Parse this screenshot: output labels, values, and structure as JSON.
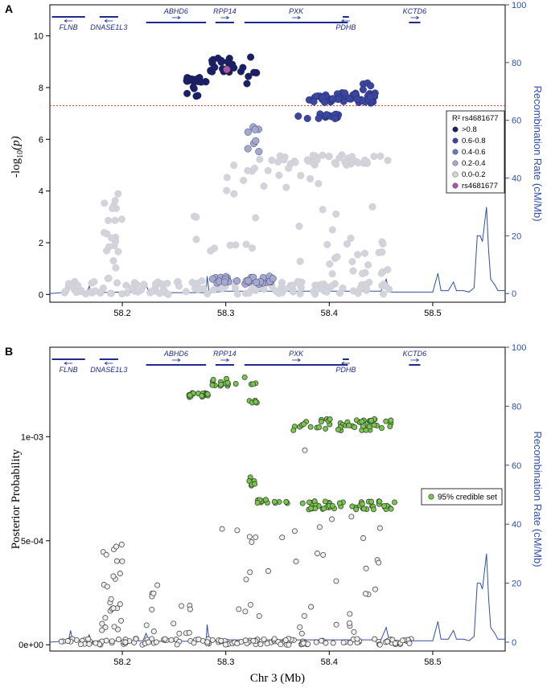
{
  "colors": {
    "ld_r2_above_0_8": "#1a1f66",
    "ld_r2_0_6_0_8": "#3b46a0",
    "ld_r2_0_4_0_6": "#6f76b8",
    "ld_r2_0_2_0_4": "#a6a9cf",
    "ld_r2_0_0_0_2": "#d3d3dc",
    "lead_snp": "#a855a5",
    "credible_set": "#77c84a",
    "other_snp_fill": "#eeeeee",
    "recombination_line": "#2f4fa8",
    "threshold_line": "#e23b3b",
    "gene_track": "#1f2a8c"
  },
  "chart_data": [
    {
      "panel_label": "A",
      "type": "scatter",
      "title": "",
      "xlabel": "",
      "ylabel": "-log10(p)",
      "ylabel_main": "-log",
      "ylabel_sub": "10",
      "ylabel_tail": "(p)",
      "y2label": "Recombination Rate (cM/Mb)",
      "xlim": [
        58.13,
        58.57
      ],
      "ylim": [
        -0.3,
        11.2
      ],
      "y2lim": [
        -3,
        100
      ],
      "yticks": [
        "0",
        "2",
        "4",
        "6",
        "8",
        "10"
      ],
      "y2ticks": [
        "0",
        "20",
        "40",
        "60",
        "80",
        "100"
      ],
      "xticks": [
        "58.2",
        "58.3",
        "58.4",
        "58.5"
      ],
      "threshold": 7.3,
      "genes": [
        {
          "name": "FLNB",
          "start": 58.132,
          "end": 58.164,
          "strand": "-",
          "row": "lower"
        },
        {
          "name": "DNASE1L3",
          "start": 58.178,
          "end": 58.196,
          "strand": "-",
          "row": "lower"
        },
        {
          "name": "ABHD6",
          "start": 58.223,
          "end": 58.281,
          "strand": "+",
          "row": "upper"
        },
        {
          "name": "RPP14",
          "start": 58.29,
          "end": 58.308,
          "strand": "+",
          "row": "upper"
        },
        {
          "name": "PXK",
          "start": 58.318,
          "end": 58.418,
          "strand": "+",
          "row": "upper"
        },
        {
          "name": "PDHB",
          "start": 58.413,
          "end": 58.419,
          "strand": "-",
          "row": "lower"
        },
        {
          "name": "KCTD6",
          "start": 58.477,
          "end": 58.488,
          "strand": "+",
          "row": "upper"
        }
      ],
      "legend_title": "R² rs4681677",
      "legend": [
        {
          "label": ">0.8",
          "color": "#1a1f66"
        },
        {
          "label": "0.6-0.8",
          "color": "#3b46a0"
        },
        {
          "label": "0.4-0.6",
          "color": "#6f76b8"
        },
        {
          "label": "0.2-0.4",
          "color": "#a6a9cf"
        },
        {
          "label": "0.0-0.2",
          "color": "#d3d3dc"
        },
        {
          "label": "rs4681677",
          "color": "#a855a5"
        }
      ],
      "lead_snp": {
        "name": "rs4681677",
        "x": 58.301,
        "y": 8.7
      },
      "clusters": [
        {
          "ld": "r08",
          "x_range": [
            58.262,
            58.283
          ],
          "y_range": [
            8.2,
            8.4
          ],
          "n": 22
        },
        {
          "ld": "r08",
          "x_range": [
            58.262,
            58.275
          ],
          "y_range": [
            7.6,
            8.1
          ],
          "n": 5
        },
        {
          "ld": "r08",
          "x_range": [
            58.285,
            58.31
          ],
          "y_range": [
            8.6,
            9.2
          ],
          "n": 20
        },
        {
          "ld": "r08",
          "x_range": [
            58.312,
            58.33
          ],
          "y_range": [
            8.1,
            9.3
          ],
          "n": 8
        },
        {
          "ld": "r06",
          "x_range": [
            58.38,
            58.445
          ],
          "y_range": [
            7.4,
            7.8
          ],
          "n": 50
        },
        {
          "ld": "r06",
          "x_range": [
            58.37,
            58.41
          ],
          "y_range": [
            6.8,
            7.0
          ],
          "n": 14
        },
        {
          "ld": "r06",
          "x_range": [
            58.43,
            58.455
          ],
          "y_range": [
            7.5,
            8.3
          ],
          "n": 6
        },
        {
          "ld": "r02",
          "x_range": [
            58.32,
            58.34
          ],
          "y_range": [
            5.5,
            6.5
          ],
          "n": 8
        },
        {
          "ld": "r02",
          "x_range": [
            58.28,
            58.35
          ],
          "y_range": [
            0.4,
            0.7
          ],
          "n": 30
        },
        {
          "ld": "r00",
          "x_range": [
            58.33,
            58.46
          ],
          "y_range": [
            5.0,
            5.4
          ],
          "n": 42
        },
        {
          "ld": "r00",
          "x_range": [
            58.3,
            58.39
          ],
          "y_range": [
            3.5,
            5.1
          ],
          "n": 16
        },
        {
          "ld": "r00",
          "x_range": [
            58.18,
            58.2
          ],
          "y_range": [
            0.6,
            3.9
          ],
          "n": 22
        },
        {
          "ld": "r00",
          "x_range": [
            58.14,
            58.46
          ],
          "y_range": [
            0.0,
            0.5
          ],
          "n": 130
        },
        {
          "ld": "r00",
          "x_range": [
            58.24,
            58.46
          ],
          "y_range": [
            0.5,
            3.5
          ],
          "n": 30
        },
        {
          "ld": "r00",
          "x_range": [
            58.4,
            58.46
          ],
          "y_range": [
            0.8,
            1.8
          ],
          "n": 10
        }
      ],
      "recombination": [
        [
          58.13,
          0
        ],
        [
          58.148,
          0.5
        ],
        [
          58.15,
          4
        ],
        [
          58.152,
          0.5
        ],
        [
          58.166,
          0.5
        ],
        [
          58.168,
          2.5
        ],
        [
          58.17,
          0.3
        ],
        [
          58.2,
          0.5
        ],
        [
          58.22,
          0.5
        ],
        [
          58.223,
          3
        ],
        [
          58.226,
          0.3
        ],
        [
          58.245,
          0.3
        ],
        [
          58.281,
          0.3
        ],
        [
          58.282,
          6
        ],
        [
          58.284,
          0.3
        ],
        [
          58.3,
          0.8
        ],
        [
          58.33,
          0.8
        ],
        [
          58.45,
          0.8
        ],
        [
          58.455,
          5
        ],
        [
          58.458,
          0.5
        ],
        [
          58.5,
          0.5
        ],
        [
          58.505,
          7
        ],
        [
          58.508,
          1
        ],
        [
          58.515,
          1
        ],
        [
          58.52,
          4
        ],
        [
          58.523,
          1
        ],
        [
          58.53,
          1
        ],
        [
          58.535,
          0.5
        ],
        [
          58.54,
          2
        ],
        [
          58.543,
          20
        ],
        [
          58.546,
          20
        ],
        [
          58.548,
          18
        ],
        [
          58.552,
          30
        ],
        [
          58.554,
          15
        ],
        [
          58.556,
          5
        ],
        [
          58.56,
          3
        ],
        [
          58.563,
          1
        ],
        [
          58.57,
          1
        ]
      ]
    },
    {
      "panel_label": "B",
      "type": "scatter",
      "title": "",
      "xlabel": "Chr 3 (Mb)",
      "ylabel": "Posterior Probability",
      "y2label": "Recombination Rate (cM/Mb)",
      "xlim": [
        58.13,
        58.57
      ],
      "ylim": [
        -3e-05,
        0.00143
      ],
      "y2lim": [
        -3,
        100
      ],
      "yticks": [
        "0e+00",
        "5e-04",
        "1e-03"
      ],
      "y2ticks": [
        "0",
        "20",
        "40",
        "60",
        "80",
        "100"
      ],
      "xticks": [
        "58.2",
        "58.3",
        "58.4",
        "58.5"
      ],
      "genes": [
        {
          "name": "FLNB",
          "start": 58.132,
          "end": 58.164,
          "strand": "-",
          "row": "lower"
        },
        {
          "name": "DNASE1L3",
          "start": 58.178,
          "end": 58.196,
          "strand": "-",
          "row": "lower"
        },
        {
          "name": "ABHD6",
          "start": 58.223,
          "end": 58.281,
          "strand": "+",
          "row": "upper"
        },
        {
          "name": "RPP14",
          "start": 58.29,
          "end": 58.308,
          "strand": "+",
          "row": "upper"
        },
        {
          "name": "PXK",
          "start": 58.318,
          "end": 58.418,
          "strand": "+",
          "row": "upper"
        },
        {
          "name": "PDHB",
          "start": 58.413,
          "end": 58.419,
          "strand": "-",
          "row": "lower"
        },
        {
          "name": "KCTD6",
          "start": 58.477,
          "end": 58.488,
          "strand": "+",
          "row": "upper"
        }
      ],
      "legend": [
        {
          "label": "95% credible set",
          "color": "#77c84a"
        }
      ],
      "clusters": [
        {
          "set": "credible",
          "x_range": [
            58.262,
            58.283
          ],
          "y_range": [
            0.00119,
            0.00121
          ],
          "n": 18
        },
        {
          "set": "credible",
          "x_range": [
            58.285,
            58.31
          ],
          "y_range": [
            0.00124,
            0.00128
          ],
          "n": 14
        },
        {
          "set": "credible",
          "x_range": [
            58.31,
            58.33
          ],
          "y_range": [
            0.00125,
            0.00129
          ],
          "n": 4
        },
        {
          "set": "credible",
          "x_range": [
            58.322,
            58.33
          ],
          "y_range": [
            0.00116,
            0.00118
          ],
          "n": 6
        },
        {
          "set": "credible",
          "x_range": [
            58.365,
            58.46
          ],
          "y_range": [
            0.00103,
            0.00109
          ],
          "n": 55
        },
        {
          "set": "credible",
          "x_range": [
            58.32,
            58.33
          ],
          "y_range": [
            0.00075,
            0.00081
          ],
          "n": 6
        },
        {
          "set": "credible",
          "x_range": [
            58.325,
            58.36
          ],
          "y_range": [
            0.00068,
            0.0007
          ],
          "n": 14
        },
        {
          "set": "credible",
          "x_range": [
            58.37,
            58.465
          ],
          "y_range": [
            0.00065,
            0.00069
          ],
          "n": 50
        },
        {
          "set": "other",
          "x_range": [
            58.375,
            58.38
          ],
          "y_range": [
            0.00092,
            0.00094
          ],
          "n": 1
        },
        {
          "set": "other",
          "x_range": [
            58.29,
            58.46
          ],
          "y_range": [
            0.0003,
            0.00063
          ],
          "n": 22
        },
        {
          "set": "other",
          "x_range": [
            58.18,
            58.2
          ],
          "y_range": [
            5e-05,
            0.0005
          ],
          "n": 26
        },
        {
          "set": "other",
          "x_range": [
            58.14,
            58.49
          ],
          "y_range": [
            0.0,
            3e-05
          ],
          "n": 150
        },
        {
          "set": "other",
          "x_range": [
            58.22,
            58.46
          ],
          "y_range": [
            5e-05,
            0.0003
          ],
          "n": 30
        }
      ],
      "recombination": [
        [
          58.13,
          0
        ],
        [
          58.148,
          0.5
        ],
        [
          58.15,
          4
        ],
        [
          58.152,
          0.5
        ],
        [
          58.166,
          0.5
        ],
        [
          58.168,
          2.5
        ],
        [
          58.17,
          0.3
        ],
        [
          58.2,
          0.5
        ],
        [
          58.22,
          0.5
        ],
        [
          58.223,
          3
        ],
        [
          58.226,
          0.3
        ],
        [
          58.245,
          0.3
        ],
        [
          58.281,
          0.3
        ],
        [
          58.282,
          6
        ],
        [
          58.284,
          0.3
        ],
        [
          58.3,
          0.8
        ],
        [
          58.33,
          0.8
        ],
        [
          58.45,
          0.8
        ],
        [
          58.455,
          5
        ],
        [
          58.458,
          0.5
        ],
        [
          58.5,
          0.5
        ],
        [
          58.505,
          7
        ],
        [
          58.508,
          1
        ],
        [
          58.515,
          1
        ],
        [
          58.52,
          4
        ],
        [
          58.523,
          1
        ],
        [
          58.53,
          1
        ],
        [
          58.535,
          0.5
        ],
        [
          58.54,
          2
        ],
        [
          58.543,
          20
        ],
        [
          58.546,
          20
        ],
        [
          58.548,
          18
        ],
        [
          58.552,
          30
        ],
        [
          58.554,
          15
        ],
        [
          58.556,
          5
        ],
        [
          58.56,
          3
        ],
        [
          58.563,
          1
        ],
        [
          58.57,
          1
        ]
      ]
    }
  ]
}
